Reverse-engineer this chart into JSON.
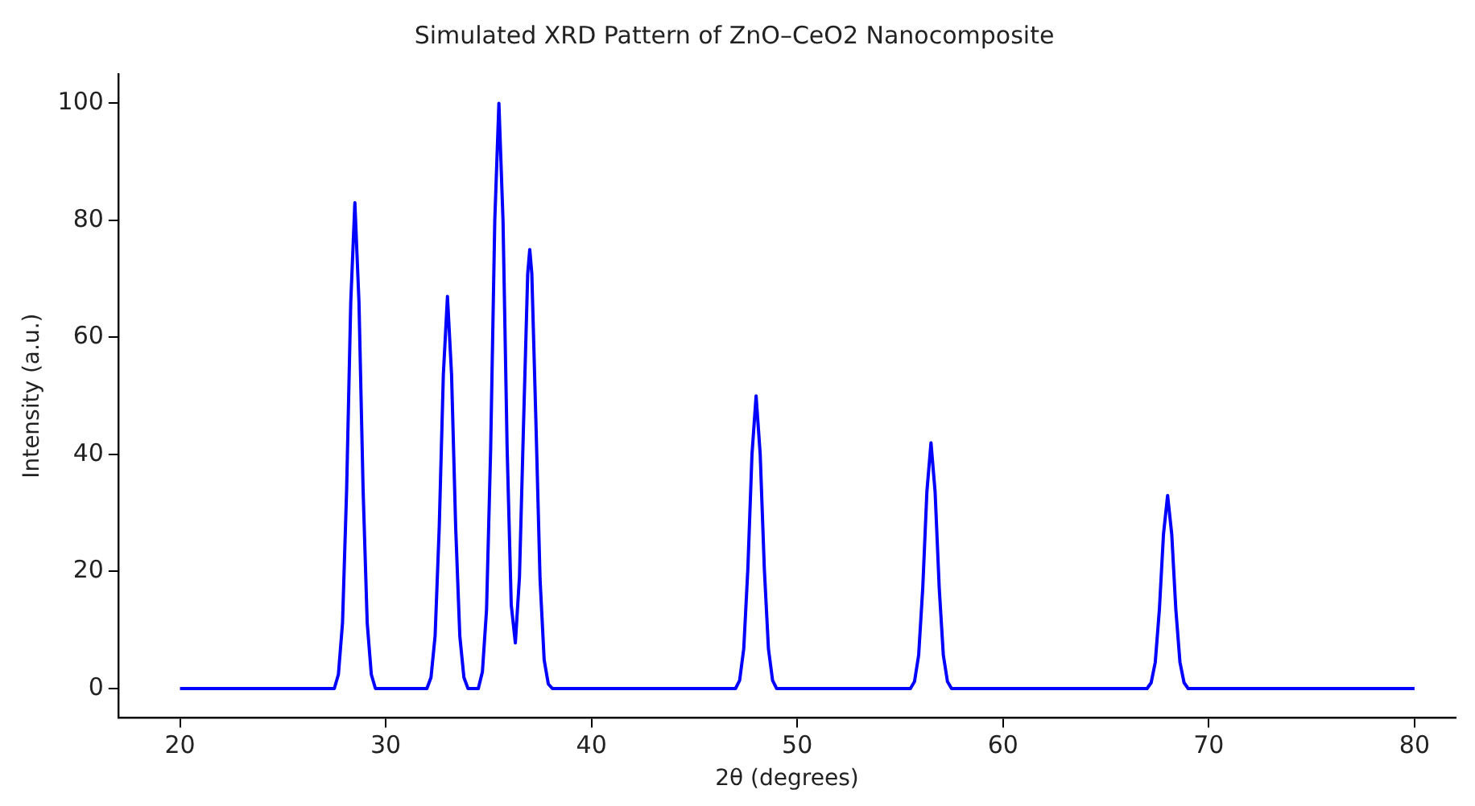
{
  "chart_data": {
    "type": "line",
    "title": "Simulated XRD Pattern of ZnO–CeO2 Nanocomposite",
    "xlabel": "2θ (degrees)",
    "ylabel": "Intensity (a.u.)",
    "x": [
      20,
      27.5,
      27.7,
      27.9,
      28.1,
      28.3,
      28.5,
      28.7,
      28.9,
      29.1,
      29.3,
      29.5,
      32.0,
      32.2,
      32.4,
      32.6,
      32.8,
      33.0,
      33.2,
      33.4,
      33.6,
      33.8,
      34.0,
      34.5,
      34.7,
      34.9,
      35.1,
      35.3,
      35.5,
      35.7,
      35.9,
      36.1,
      36.3,
      36.5,
      36.7,
      36.9,
      37.0,
      37.1,
      37.3,
      37.5,
      37.7,
      37.9,
      38.1,
      47.0,
      47.2,
      47.4,
      47.6,
      47.8,
      48.0,
      48.2,
      48.4,
      48.6,
      48.8,
      49.0,
      55.5,
      55.7,
      55.9,
      56.1,
      56.3,
      56.5,
      56.7,
      56.9,
      57.1,
      57.3,
      57.5,
      67.0,
      67.2,
      67.4,
      67.6,
      67.8,
      68.0,
      68.2,
      68.4,
      68.6,
      68.8,
      69.0,
      80
    ],
    "series": [
      {
        "color": "#0000ff",
        "values": [
          0,
          0,
          2.4,
          11.2,
          34,
          66,
          83,
          66,
          34,
          11.2,
          2.4,
          0,
          0,
          1.9,
          9,
          27.5,
          53.6,
          67,
          53.6,
          27.5,
          9,
          1.9,
          0,
          0,
          2.9,
          13.5,
          41,
          80,
          100,
          80,
          41.1,
          14.3,
          7.8,
          19.1,
          45.5,
          70.9,
          75,
          70.9,
          45.5,
          18.7,
          4.9,
          0.8,
          0,
          0,
          1.4,
          6.8,
          20.5,
          40,
          50,
          40,
          20.5,
          6.8,
          1.4,
          0,
          0,
          1.2,
          5.7,
          17.2,
          33.6,
          42,
          33.6,
          17.2,
          5.7,
          1.2,
          0,
          0,
          1,
          4.5,
          13.5,
          26.4,
          33,
          26.4,
          13.5,
          4.5,
          1,
          0,
          0
        ]
      }
    ],
    "xlim": [
      17,
      82
    ],
    "xticks": [
      20,
      30,
      40,
      50,
      60,
      70,
      80
    ],
    "ylim": [
      -5,
      105
    ],
    "yticks": [
      0,
      20,
      40,
      60,
      80,
      100
    ],
    "grid": false,
    "legend": false,
    "marker": "none",
    "line_style": "solid"
  }
}
